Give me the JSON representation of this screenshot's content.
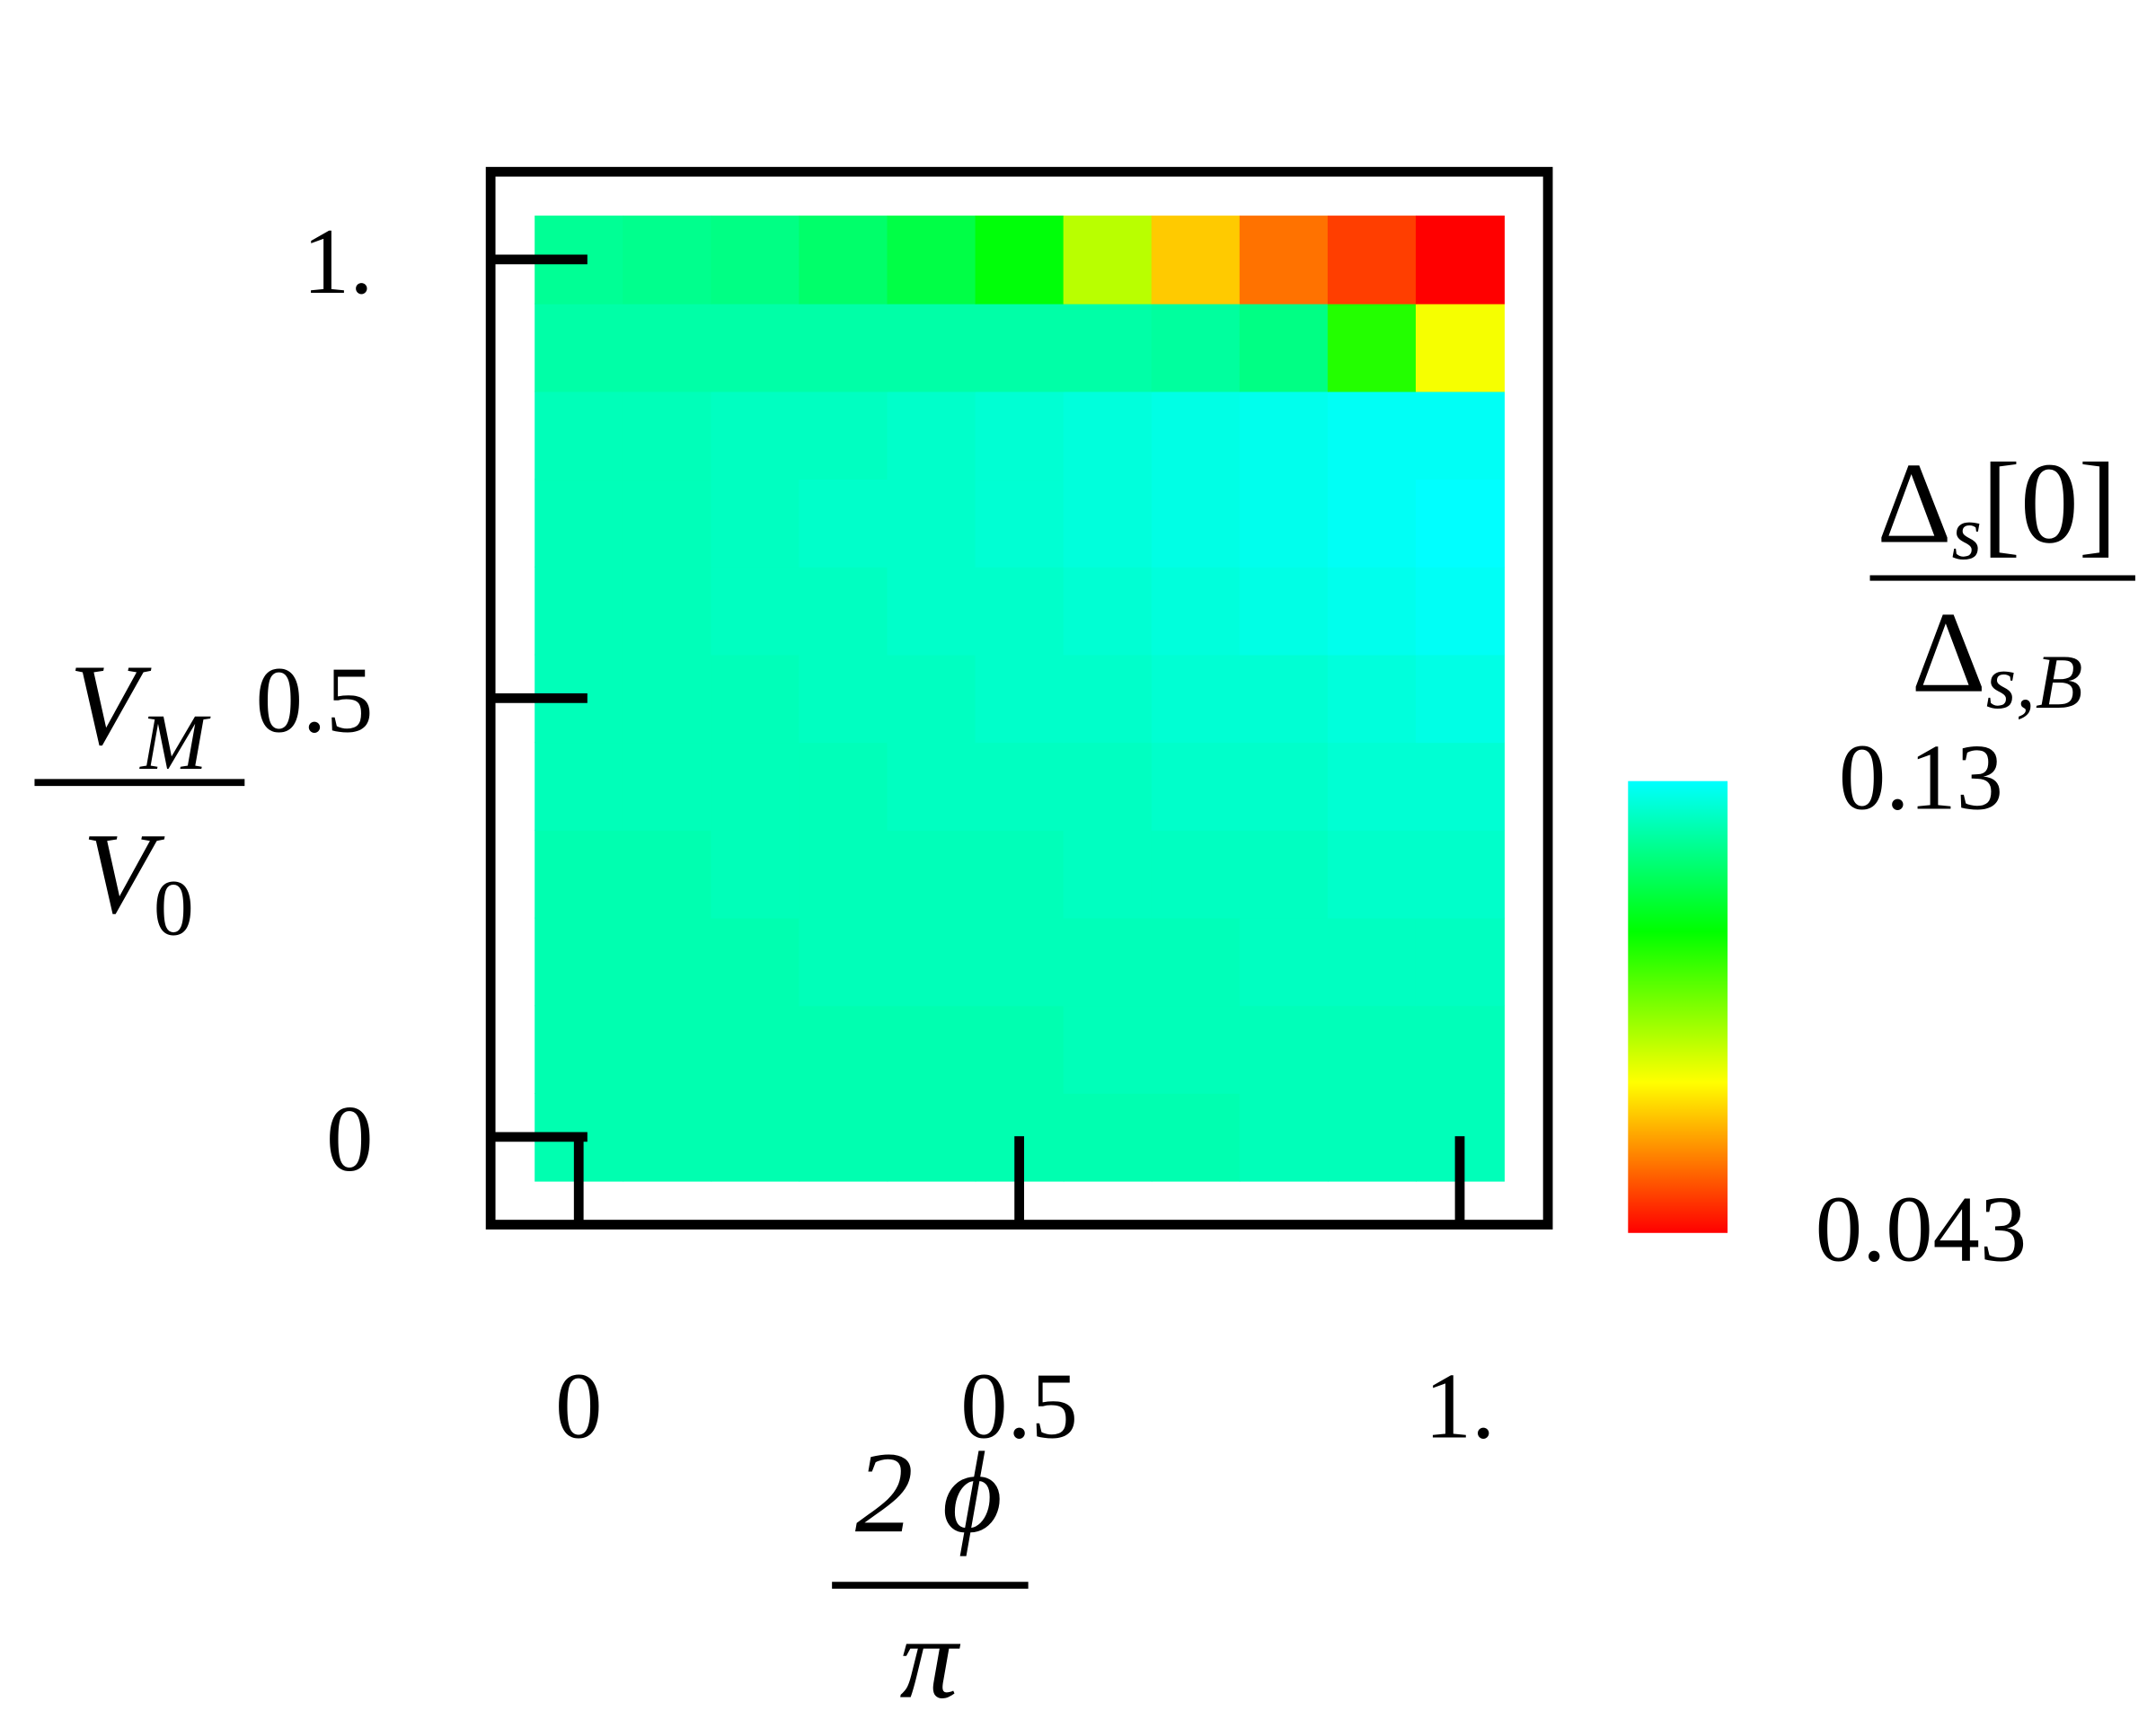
{
  "chart_data": {
    "type": "heatmap",
    "x": [
      0,
      0.1,
      0.2,
      0.3,
      0.4,
      0.5,
      0.6,
      0.7,
      0.8,
      0.9,
      1
    ],
    "y": [
      0,
      0.1,
      0.2,
      0.3,
      0.4,
      0.5,
      0.6,
      0.7,
      0.8,
      0.9,
      1
    ],
    "z": [
      [
        0.121,
        0.121,
        0.121,
        0.121,
        0.121,
        0.121,
        0.121,
        0.121,
        0.122,
        0.122,
        0.122
      ],
      [
        0.121,
        0.121,
        0.121,
        0.121,
        0.121,
        0.121,
        0.122,
        0.122,
        0.122,
        0.122,
        0.122
      ],
      [
        0.121,
        0.121,
        0.121,
        0.122,
        0.122,
        0.122,
        0.122,
        0.122,
        0.123,
        0.123,
        0.123
      ],
      [
        0.121,
        0.121,
        0.122,
        0.122,
        0.122,
        0.122,
        0.123,
        0.123,
        0.123,
        0.124,
        0.124
      ],
      [
        0.122,
        0.122,
        0.122,
        0.122,
        0.123,
        0.123,
        0.123,
        0.124,
        0.124,
        0.125,
        0.125
      ],
      [
        0.122,
        0.122,
        0.122,
        0.123,
        0.123,
        0.124,
        0.124,
        0.125,
        0.125,
        0.126,
        0.127
      ],
      [
        0.122,
        0.122,
        0.123,
        0.123,
        0.124,
        0.124,
        0.125,
        0.126,
        0.127,
        0.128,
        0.129
      ],
      [
        0.122,
        0.122,
        0.123,
        0.124,
        0.124,
        0.125,
        0.126,
        0.127,
        0.128,
        0.129,
        0.13
      ],
      [
        0.122,
        0.122,
        0.123,
        0.123,
        0.124,
        0.125,
        0.126,
        0.127,
        0.128,
        0.129,
        0.129
      ],
      [
        0.12,
        0.12,
        0.12,
        0.12,
        0.12,
        0.12,
        0.12,
        0.119,
        0.116,
        0.097,
        0.073
      ],
      [
        0.118,
        0.117,
        0.116,
        0.113,
        0.109,
        0.102,
        0.08,
        0.066,
        0.056,
        0.05,
        0.043
      ]
    ],
    "xlim": [
      -0.1,
      1.1
    ],
    "ylim": [
      -0.1,
      1.1
    ],
    "xticks": [
      0,
      0.5,
      {
        "value": 1,
        "label": "1."
      }
    ],
    "yticks": [
      0,
      0.5,
      {
        "value": 1,
        "label": "1."
      }
    ],
    "zlim": [
      0.043,
      0.13
    ],
    "zticks": [
      0.043,
      0.13
    ],
    "colormap": [
      "#ff0000",
      "#ffff00",
      "#00ff00",
      "#00ffff"
    ],
    "x_label": {
      "numerator": "2 ϕ",
      "denominator": "π"
    },
    "y_label": {
      "numerator": {
        "base": "V",
        "sub": "M"
      },
      "denominator": {
        "base": "V",
        "sub": "0"
      }
    },
    "colorbar_label": {
      "numerator": {
        "base": "Δ",
        "sub": "s",
        "suffix": "[0]"
      },
      "denominator": {
        "base": "Δ",
        "sub": "s,B"
      }
    }
  }
}
